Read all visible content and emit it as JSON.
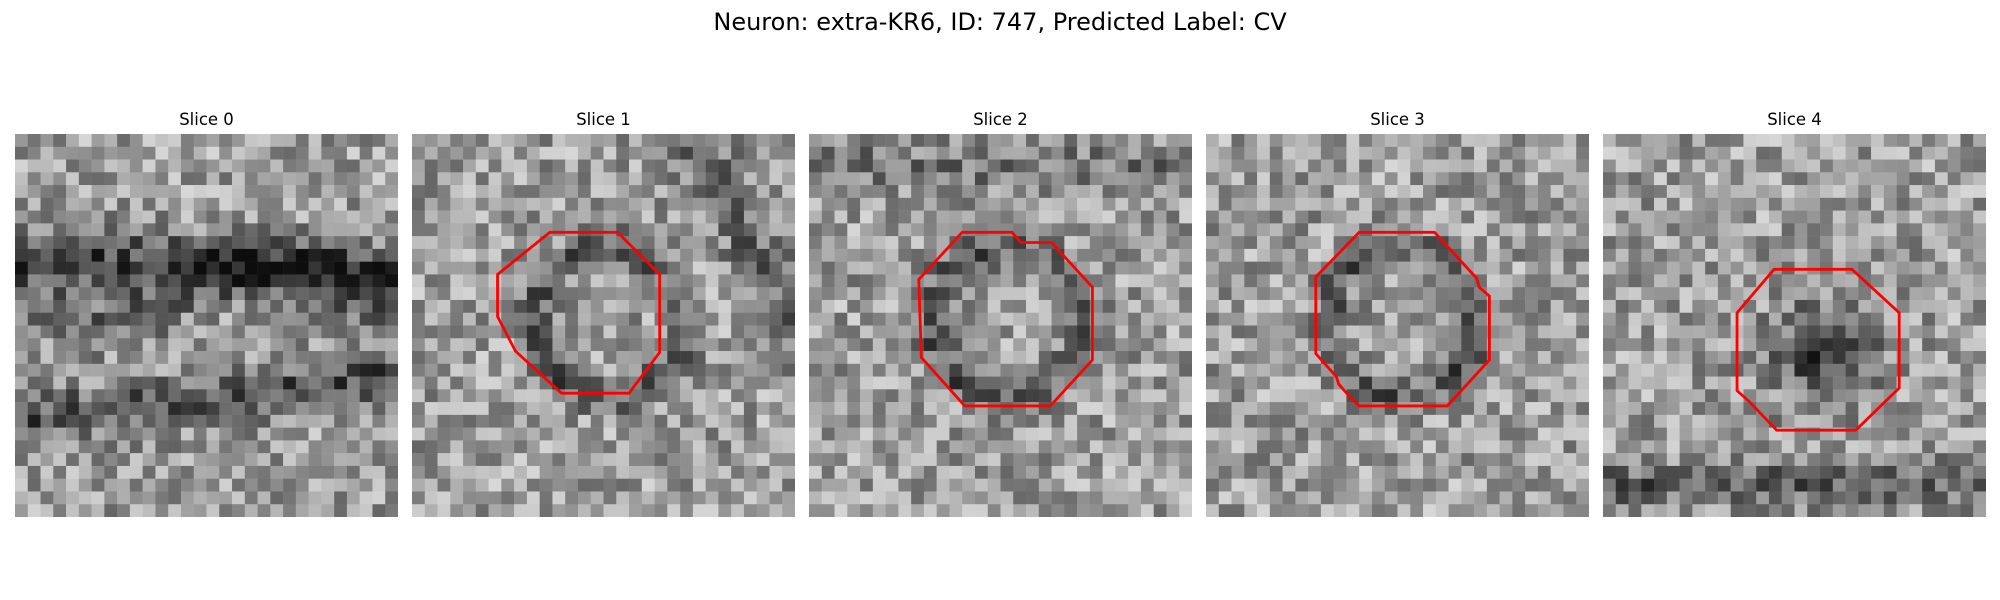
{
  "figure": {
    "title": "Neuron: extra-KR6, ID: 747, Predicted Label: CV"
  },
  "panels": [
    {
      "title": "Slice 0",
      "has_contour": false
    },
    {
      "title": "Slice 1",
      "has_contour": true
    },
    {
      "title": "Slice 2",
      "has_contour": true
    },
    {
      "title": "Slice 3",
      "has_contour": true
    },
    {
      "title": "Slice 4",
      "has_contour": true
    }
  ],
  "colors": {
    "contour": "#ff0000",
    "background": "#ffffff"
  },
  "colormap": "gray"
}
